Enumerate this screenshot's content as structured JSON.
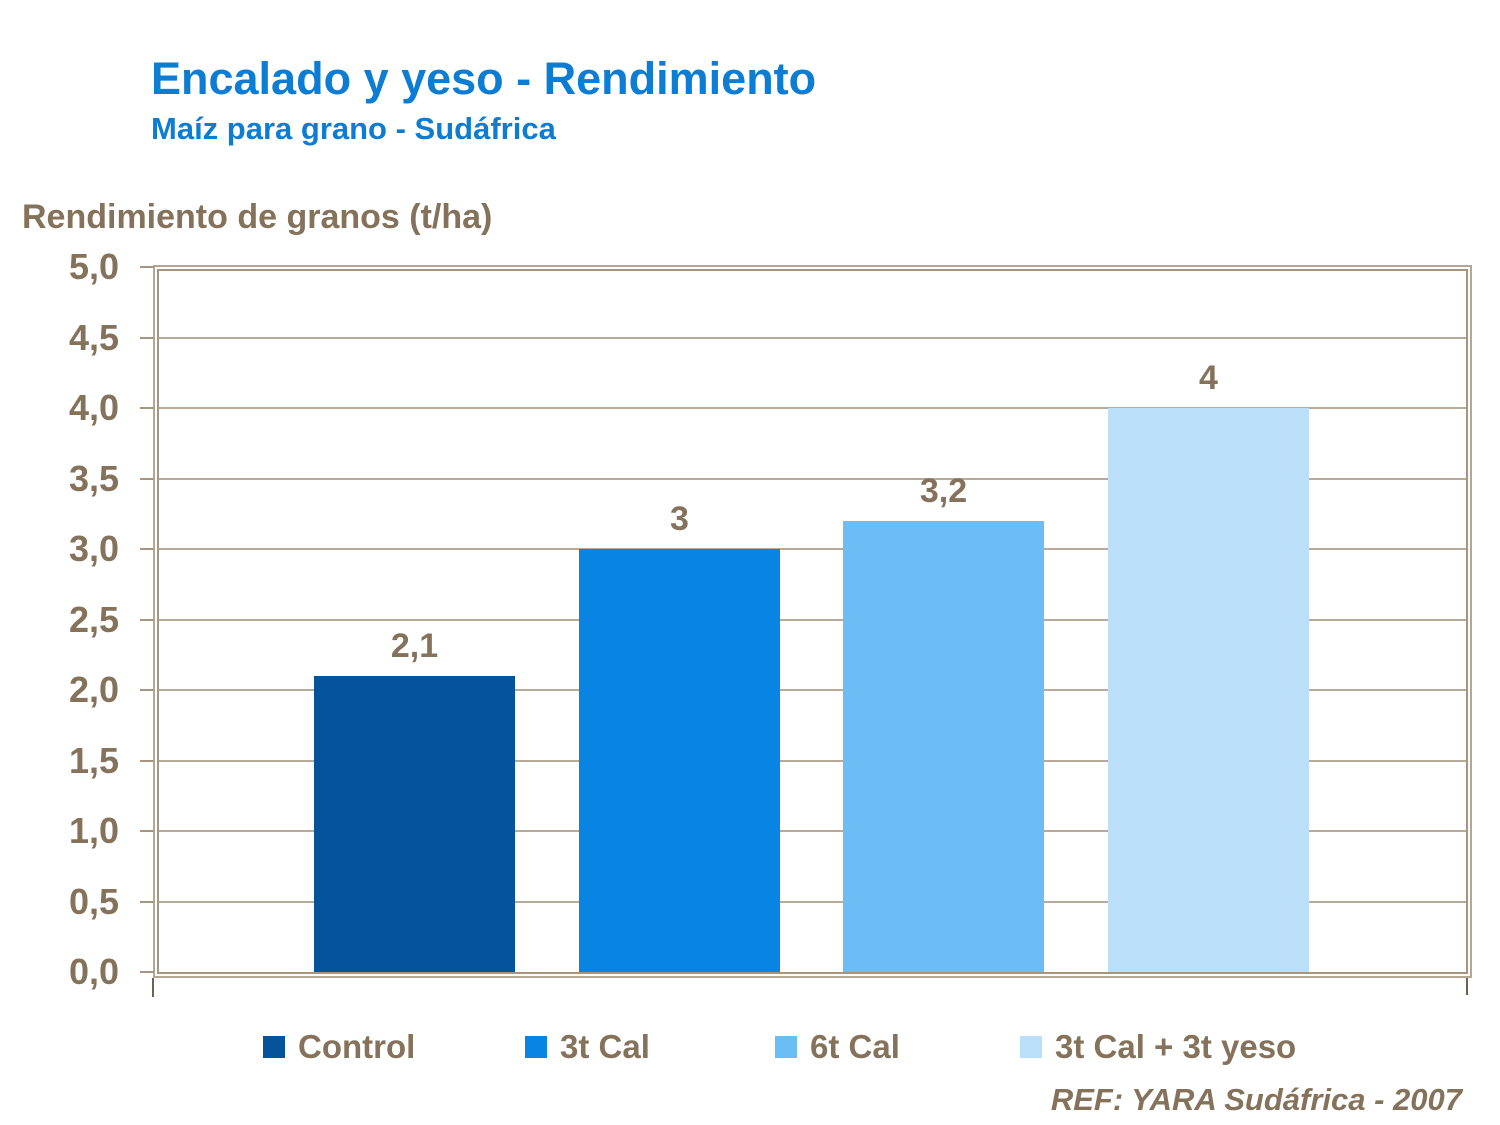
{
  "header": {
    "title": "Encalado y yeso - Rendimiento",
    "subtitle": "Maíz para grano - Sudáfrica"
  },
  "axis_heading": "Rendimiento de granos (t/ha)",
  "footer": {
    "reference": "REF: YARA Sudáfrica - 2007"
  },
  "colors": {
    "title_blue": "#0d7dd3",
    "text_brown": "#84725a",
    "plot_border_inner": "#a69681",
    "plot_border_outer": "#b5a795",
    "gridline": "#b7aa98",
    "axis_end_tick": "#6f6152",
    "background": "#ffffff"
  },
  "chart_data": {
    "type": "bar",
    "title": "Encalado y yeso - Rendimiento",
    "subtitle": "Maíz para grano - Sudáfrica",
    "xlabel": "",
    "ylabel": "Rendimiento de granos (t/ha)",
    "categories": [
      "Control",
      "3t Cal",
      "6t Cal",
      "3t Cal + 3t yeso"
    ],
    "values": [
      2.1,
      3,
      3.2,
      4
    ],
    "value_labels": [
      "2,1",
      "3",
      "3,2",
      "4"
    ],
    "bar_colors": [
      "#05549b",
      "#0884e4",
      "#6abef5",
      "#bbdff8"
    ],
    "ylim": [
      0,
      5
    ],
    "ytick_step": 0.5,
    "ytick_labels": [
      "0,0",
      "0,5",
      "1,0",
      "1,5",
      "2,0",
      "2,5",
      "3,0",
      "3,5",
      "4,0",
      "4,5",
      "5,0"
    ],
    "decimal_separator": ",",
    "grid": true,
    "legend_position": "bottom",
    "legend": [
      {
        "label": "Control",
        "color": "#05549b"
      },
      {
        "label": "3t Cal",
        "color": "#0884e4"
      },
      {
        "label": "6t Cal",
        "color": "#6abef5"
      },
      {
        "label": "3t Cal + 3t yeso",
        "color": "#bbdff8"
      }
    ],
    "reference": "REF: YARA Sudáfrica - 2007"
  }
}
